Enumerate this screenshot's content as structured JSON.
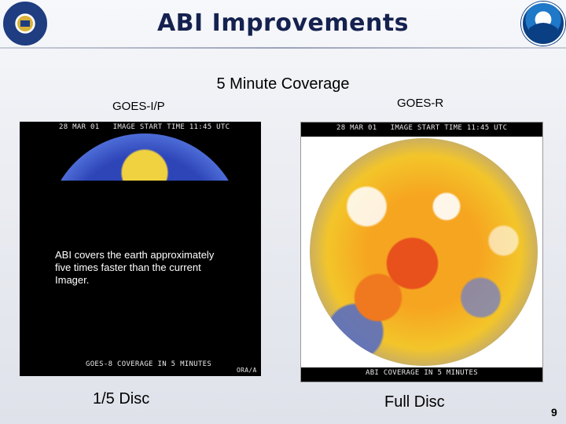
{
  "slide": {
    "title": "ABI Improvements",
    "subtitle": "5 Minute Coverage",
    "page_number": "9"
  },
  "logos": {
    "left": "commerce-seal-icon",
    "right": "noaa-logo-icon"
  },
  "left_panel": {
    "label": "GOES-I/P",
    "header": "28 MAR 01   IMAGE START TIME 11:45 UTC",
    "footer": "GOES-8 COVERAGE IN 5 MINUTES",
    "corner": "ORA/A",
    "caption": "ABI covers the earth approximately five times faster than the current Imager.",
    "bottom_label": "1/5 Disc"
  },
  "right_panel": {
    "label": "GOES-R",
    "header": "28 MAR 01   IMAGE START TIME 11:45 UTC",
    "footer": "ABI COVERAGE IN 5 MINUTES",
    "bottom_label": "Full Disc"
  }
}
